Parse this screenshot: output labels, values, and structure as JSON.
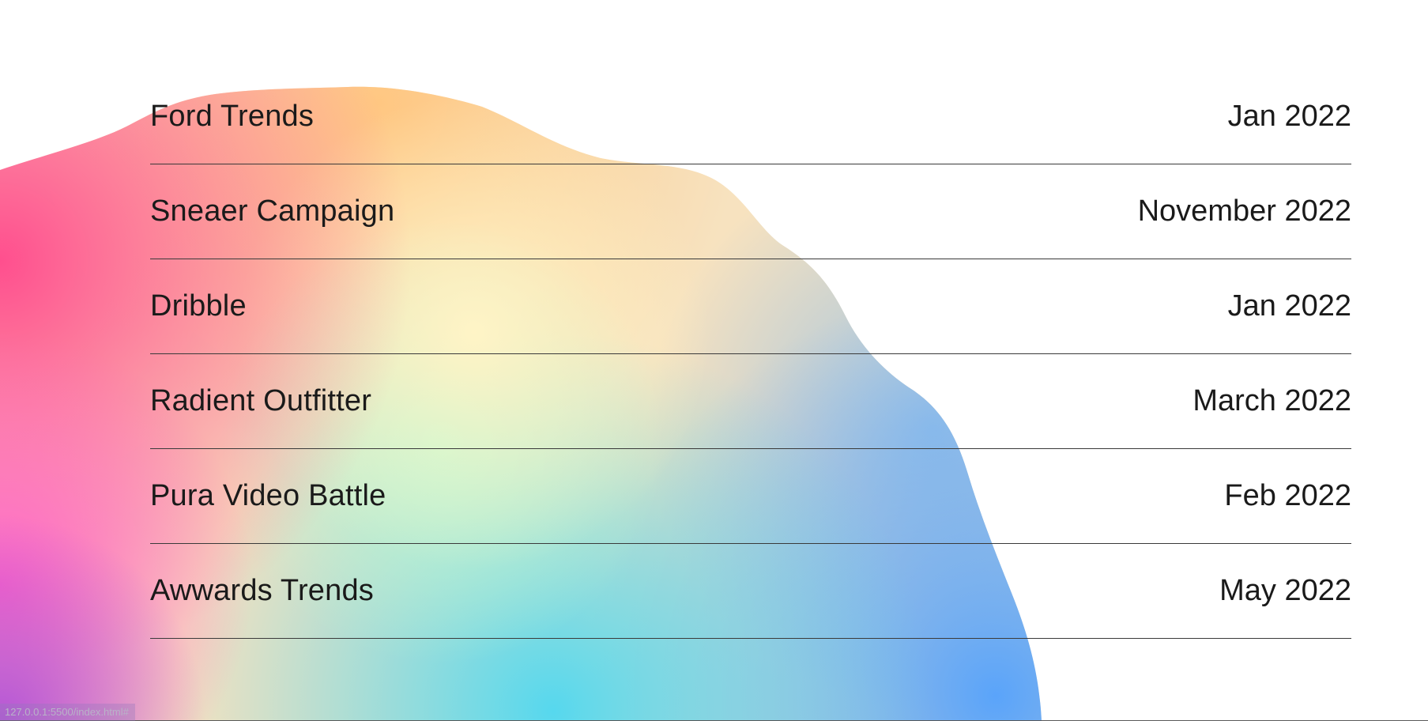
{
  "projects": [
    {
      "name": "Ford Trends",
      "date": "Jan 2022"
    },
    {
      "name": "Sneaer Campaign",
      "date": "November 2022"
    },
    {
      "name": "Dribble",
      "date": "Jan 2022"
    },
    {
      "name": "Radient Outfitter",
      "date": "March 2022"
    },
    {
      "name": "Pura Video Battle",
      "date": "Feb 2022"
    },
    {
      "name": "Awwards Trends",
      "date": "May 2022"
    }
  ],
  "status_bar": {
    "url": "127.0.0.1:5500/index.html#"
  },
  "colors": {
    "gradient_pink": "#ff5a8c",
    "gradient_peach": "#ffc98a",
    "gradient_cream": "#fff0c0",
    "gradient_mint": "#b8f7d4",
    "gradient_cyan": "#5fd8ee",
    "gradient_blue": "#5aa8f8",
    "gradient_magenta": "#ff66c4",
    "gradient_purple": "#b25ad6",
    "text": "#1a1a1a",
    "divider": "#3a3a3a"
  }
}
